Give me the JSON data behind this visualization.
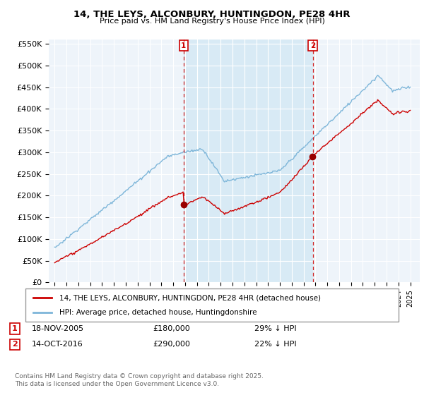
{
  "title_line1": "14, THE LEYS, ALCONBURY, HUNTINGDON, PE28 4HR",
  "title_line2": "Price paid vs. HM Land Registry's House Price Index (HPI)",
  "hpi_color": "#7eb6d9",
  "price_color": "#cc0000",
  "shade_color": "#d8eaf5",
  "background_color": "#eef4fa",
  "grid_color": "#ffffff",
  "sale1_year": 2005.88,
  "sale1_price": 180000,
  "sale1_label": "1",
  "sale1_date": "18-NOV-2005",
  "sale1_hpi_diff": "29% ↓ HPI",
  "sale2_year": 2016.78,
  "sale2_price": 290000,
  "sale2_label": "2",
  "sale2_date": "14-OCT-2016",
  "sale2_hpi_diff": "22% ↓ HPI",
  "legend_label1": "14, THE LEYS, ALCONBURY, HUNTINGDON, PE28 4HR (detached house)",
  "legend_label2": "HPI: Average price, detached house, Huntingdonshire",
  "footnote": "Contains HM Land Registry data © Crown copyright and database right 2025.\nThis data is licensed under the Open Government Licence v3.0.",
  "xmin": 1994.5,
  "xmax": 2025.8,
  "ylim": [
    0,
    560000
  ],
  "yticks": [
    0,
    50000,
    100000,
    150000,
    200000,
    250000,
    300000,
    350000,
    400000,
    450000,
    500000,
    550000
  ],
  "ytick_labels": [
    "£0",
    "£50K",
    "£100K",
    "£150K",
    "£200K",
    "£250K",
    "£300K",
    "£350K",
    "£400K",
    "£450K",
    "£500K",
    "£550K"
  ]
}
